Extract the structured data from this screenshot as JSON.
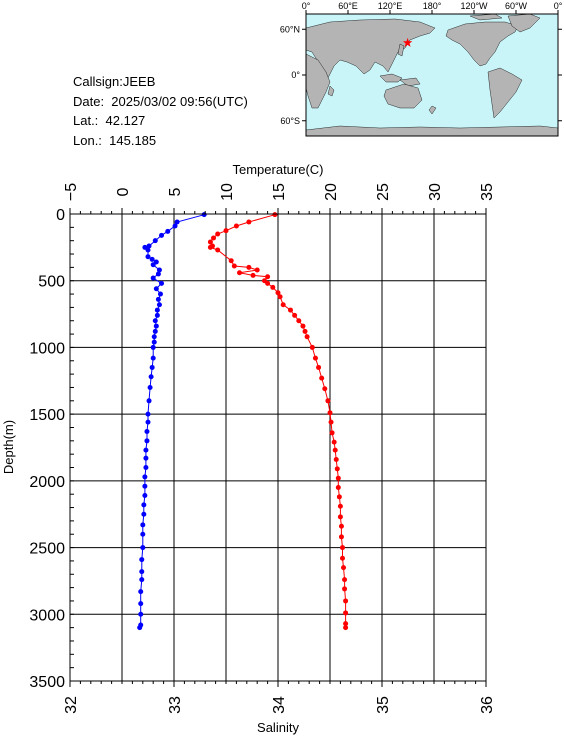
{
  "info": {
    "callsign": "Callsign:JEEB",
    "date": "Date:  2025/03/02 09:56(UTC)",
    "lat": "Lat.:  42.127",
    "lon": "Lon.:  145.185"
  },
  "map": {
    "lon_labels": [
      "0°",
      "60°E",
      "120°E",
      "180°",
      "120°W",
      "60°W",
      "0°"
    ],
    "lat_labels": [
      "60°N",
      "0°",
      "60°S"
    ],
    "station_lat": 42.127,
    "station_lon": 145.185,
    "colors": {
      "ocean": "#c9f4f8",
      "land": "#b4b4b4",
      "marker": "#ff0000"
    }
  },
  "chart_data": {
    "type": "line",
    "title": "",
    "ylabel": "Depth(m)",
    "top_xlabel": "Temperature(C)",
    "bottom_xlabel": "Salinity",
    "ylim": [
      0,
      3500
    ],
    "y_inverted": true,
    "temperature_xlim": [
      -5,
      35
    ],
    "salinity_xlim": [
      32,
      36
    ],
    "y_ticks": [
      "0",
      "500",
      "1000",
      "1500",
      "2000",
      "2500",
      "3000",
      "3500"
    ],
    "temperature_ticks": [
      "−5",
      "0",
      "5",
      "10",
      "15",
      "20",
      "25",
      "30",
      "35"
    ],
    "salinity_ticks": [
      "32",
      "33",
      "34",
      "35",
      "36"
    ],
    "grid": true,
    "series": [
      {
        "name": "Temperature",
        "axis": "top",
        "color": "#0000ff",
        "points": [
          [
            7.9,
            5
          ],
          [
            5.3,
            60
          ],
          [
            5.1,
            90
          ],
          [
            4.4,
            130
          ],
          [
            3.8,
            160
          ],
          [
            3.2,
            200
          ],
          [
            2.6,
            240
          ],
          [
            2.2,
            250
          ],
          [
            2.5,
            270
          ],
          [
            2.5,
            320
          ],
          [
            2.9,
            340
          ],
          [
            3.3,
            360
          ],
          [
            3.0,
            380
          ],
          [
            3.6,
            420
          ],
          [
            3.5,
            450
          ],
          [
            3.0,
            480
          ],
          [
            3.8,
            520
          ],
          [
            3.3,
            560
          ],
          [
            3.7,
            600
          ],
          [
            3.5,
            640
          ],
          [
            3.6,
            680
          ],
          [
            3.4,
            720
          ],
          [
            3.4,
            760
          ],
          [
            3.2,
            800
          ],
          [
            3.3,
            840
          ],
          [
            3.2,
            880
          ],
          [
            3.1,
            920
          ],
          [
            3.1,
            960
          ],
          [
            3.0,
            1000
          ],
          [
            3.0,
            1080
          ],
          [
            2.9,
            1150
          ],
          [
            2.8,
            1220
          ],
          [
            2.7,
            1300
          ],
          [
            2.6,
            1400
          ],
          [
            2.5,
            1500
          ],
          [
            2.5,
            1560
          ],
          [
            2.4,
            1630
          ],
          [
            2.4,
            1700
          ],
          [
            2.3,
            1770
          ],
          [
            2.3,
            1830
          ],
          [
            2.3,
            1900
          ],
          [
            2.2,
            1970
          ],
          [
            2.2,
            2040
          ],
          [
            2.2,
            2110
          ],
          [
            2.1,
            2180
          ],
          [
            2.1,
            2250
          ],
          [
            2.0,
            2330
          ],
          [
            2.0,
            2400
          ],
          [
            2.0,
            2500
          ],
          [
            1.9,
            2590
          ],
          [
            1.9,
            2680
          ],
          [
            1.9,
            2740
          ],
          [
            1.8,
            2830
          ],
          [
            1.8,
            2920
          ],
          [
            1.8,
            3000
          ],
          [
            1.8,
            3080
          ],
          [
            1.7,
            3100
          ]
        ]
      },
      {
        "name": "Salinity",
        "axis": "bottom",
        "color": "#ff0000",
        "points": [
          [
            33.97,
            5
          ],
          [
            33.72,
            60
          ],
          [
            33.6,
            90
          ],
          [
            33.5,
            125
          ],
          [
            33.42,
            150
          ],
          [
            33.38,
            180
          ],
          [
            33.35,
            210
          ],
          [
            33.37,
            240
          ],
          [
            33.35,
            250
          ],
          [
            33.42,
            270
          ],
          [
            33.55,
            350
          ],
          [
            33.58,
            390
          ],
          [
            33.72,
            400
          ],
          [
            33.8,
            420
          ],
          [
            33.63,
            440
          ],
          [
            33.76,
            460
          ],
          [
            33.9,
            470
          ],
          [
            33.87,
            500
          ],
          [
            33.9,
            520
          ],
          [
            33.95,
            550
          ],
          [
            34.0,
            590
          ],
          [
            34.02,
            620
          ],
          [
            34.05,
            680
          ],
          [
            34.12,
            720
          ],
          [
            34.16,
            760
          ],
          [
            34.2,
            800
          ],
          [
            34.24,
            840
          ],
          [
            34.26,
            880
          ],
          [
            34.28,
            920
          ],
          [
            34.33,
            1000
          ],
          [
            34.36,
            1080
          ],
          [
            34.39,
            1150
          ],
          [
            34.42,
            1230
          ],
          [
            34.45,
            1310
          ],
          [
            34.48,
            1400
          ],
          [
            34.5,
            1490
          ],
          [
            34.51,
            1560
          ],
          [
            34.52,
            1640
          ],
          [
            34.54,
            1710
          ],
          [
            34.55,
            1770
          ],
          [
            34.56,
            1840
          ],
          [
            34.57,
            1910
          ],
          [
            34.58,
            1980
          ],
          [
            34.58,
            2050
          ],
          [
            34.59,
            2120
          ],
          [
            34.6,
            2190
          ],
          [
            34.6,
            2270
          ],
          [
            34.61,
            2340
          ],
          [
            34.61,
            2420
          ],
          [
            34.62,
            2500
          ],
          [
            34.62,
            2580
          ],
          [
            34.63,
            2650
          ],
          [
            34.64,
            2740
          ],
          [
            34.64,
            2810
          ],
          [
            34.65,
            2900
          ],
          [
            34.65,
            2990
          ],
          [
            34.65,
            3070
          ],
          [
            34.65,
            3100
          ]
        ]
      }
    ]
  }
}
